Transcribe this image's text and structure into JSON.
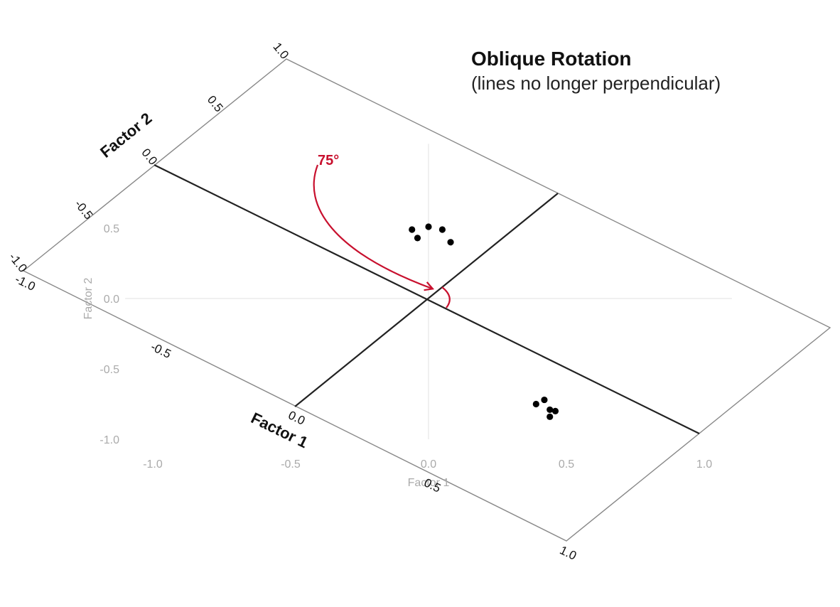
{
  "title": "Oblique Rotation",
  "subtitle": "(lines no longer perpendicular)",
  "colors": {
    "accent": "#c8102e",
    "axis": "#222222",
    "grid": "#bbbbbb",
    "frame": "#888888",
    "points": "#000000"
  },
  "chart_data": {
    "type": "scatter",
    "title": "Oblique Rotation",
    "subtitle": "(lines no longer perpendicular)",
    "xlabel": "Factor 1",
    "ylabel": "Factor 2",
    "xlim": [
      -1.0,
      1.0
    ],
    "ylim": [
      -1.0,
      1.0
    ],
    "grid": false,
    "x_ticks": [
      "-1.0",
      "-0.5",
      "0.0",
      "0.5",
      "1.0"
    ],
    "y_ticks": [
      "-1.0",
      "-0.5",
      "0.0",
      "0.5"
    ],
    "x_ticks_values": [
      -1.0,
      -0.5,
      0.0,
      0.5,
      1.0
    ],
    "y_ticks_values": [
      -1.0,
      -0.5,
      0.0,
      0.5
    ],
    "series": [
      {
        "color": "#000000",
        "points": [
          {
            "x": 0.39,
            "y": -0.75
          },
          {
            "x": 0.42,
            "y": -0.72
          },
          {
            "x": 0.44,
            "y": -0.79
          },
          {
            "x": 0.46,
            "y": -0.8
          },
          {
            "x": 0.44,
            "y": -0.84
          },
          {
            "x": -0.04,
            "y": 0.43
          },
          {
            "x": -0.06,
            "y": 0.49
          },
          {
            "x": 0.0,
            "y": 0.51
          },
          {
            "x": 0.05,
            "y": 0.49
          },
          {
            "x": 0.08,
            "y": 0.4
          }
        ]
      }
    ],
    "rotated_axes": {
      "factor1": {
        "label": "Factor 1",
        "ticks": [
          "-1.0",
          "-0.5",
          "0.0",
          "0.5",
          "1.0"
        ],
        "tick_values": [
          -1.0,
          -0.5,
          0.0,
          0.5,
          1.0
        ]
      },
      "factor2": {
        "label": "Factor 2",
        "ticks": [
          "-1.0",
          "-0.5",
          "0.0",
          "0.5",
          "1.0"
        ],
        "tick_values": [
          -1.0,
          -0.5,
          0.0,
          0.5,
          1.0
        ]
      }
    },
    "angle_annotation": "75°"
  }
}
